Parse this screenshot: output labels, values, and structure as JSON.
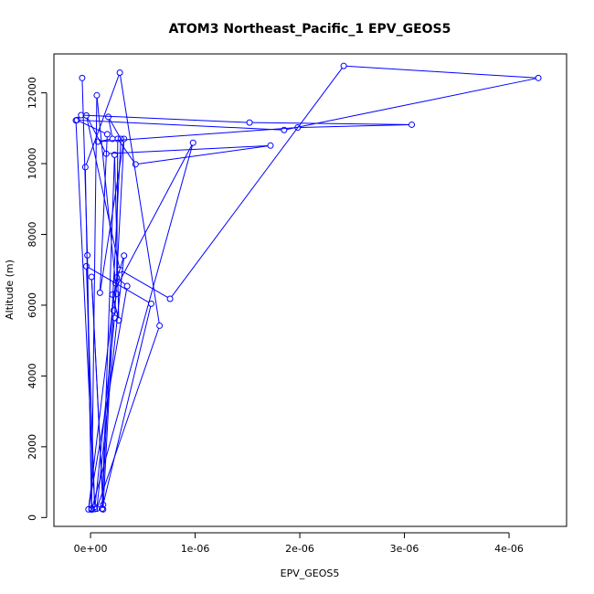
{
  "chart_data": {
    "type": "line",
    "title": "ATOM3 Northeast_Pacific_1 EPV_GEOS5",
    "xlabel": "EPV_GEOS5",
    "ylabel": "Altitude (m)",
    "xlim": [
      -3.5e-07,
      4.55e-06
    ],
    "ylim": [
      -250,
      13100
    ],
    "x_ticks": [
      0,
      1e-06,
      2e-06,
      3e-06,
      4e-06
    ],
    "x_tick_labels": [
      "0e+00",
      "1e-06",
      "2e-06",
      "3e-06",
      "4e-06"
    ],
    "y_ticks": [
      0,
      2000,
      4000,
      6000,
      8000,
      10000,
      12000
    ],
    "y_tick_labels": [
      "0",
      "2000",
      "4000",
      "6000",
      "8000",
      "10000",
      "12000"
    ],
    "color": "#0000ff",
    "series": [
      {
        "x": [
          -8e-08,
          -3e-08,
          1e-08,
          6e-08,
          2.5e-07,
          2.2e-07,
          1.2e-07,
          1e-08,
          1.2e-07,
          5.8e-07,
          -4e-08,
          4e-08,
          -1.4e-07,
          -9e-08,
          1.52e-06,
          3.07e-06,
          1.98e-06,
          7e-08,
          2.1e-07,
          1.7e-07,
          2.9e-07,
          1.1e-07,
          2.3e-07,
          2.7e-07,
          2.1e-07,
          9.8e-07,
          1e-08,
          -5e-08,
          2.8e-07,
          6.6e-07,
          6e-08,
          3.2e-07,
          2.4e-07,
          -2e-08,
          3.5e-07,
          2.5e-07,
          2.6e-07,
          4.3e-07,
          1.72e-06,
          1.5e-07,
          -4e-08,
          2.8e-07,
          7.6e-07,
          2.42e-06,
          4.28e-06,
          1.85e-06,
          -1.3e-07,
          1.6e-07,
          9e-08,
          3.2e-07,
          2.3e-07,
          4e-08
        ],
        "y": [
          12420,
          7410,
          250,
          11930,
          6320,
          5850,
          230,
          6800,
          360,
          6040,
          7100,
          300,
          11220,
          11370,
          11160,
          11100,
          11020,
          10620,
          10700,
          11320,
          10700,
          250,
          10250,
          5570,
          6300,
          10590,
          220,
          9900,
          12570,
          5420,
          250,
          7400,
          6620,
          230,
          6540,
          6780,
          10700,
          9980,
          10510,
          10280,
          11360,
          7000,
          6180,
          12760,
          12420,
          10950,
          11230,
          10830,
          6350,
          10700,
          5640,
          240
        ]
      }
    ]
  }
}
